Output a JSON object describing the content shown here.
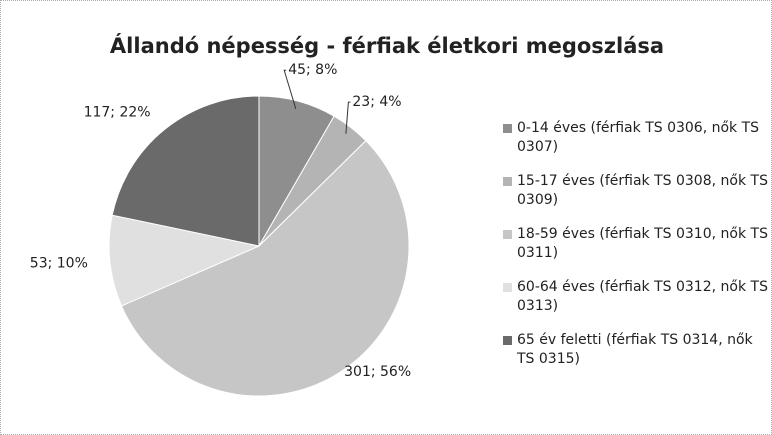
{
  "chart_data": {
    "type": "pie",
    "title": "Állandó népesség - férfiak életkori megoszlása",
    "categories": [
      "0-14 éves (férfiak TS 0306, nők TS 0307)",
      "15-17 éves (férfiak TS 0308, nők TS 0309)",
      "18-59 éves (férfiak TS 0310, nők TS 0311)",
      "60-64 éves (férfiak TS 0312, nők TS 0313)",
      "65 év feletti (férfiak TS 0314, nők TS 0315)"
    ],
    "values": [
      45,
      23,
      301,
      53,
      117
    ],
    "value_labels": [
      "45; 8%",
      "23; 4%",
      "301; 56%",
      "53; 10%",
      "117; 22%"
    ],
    "colors": [
      "#8e8e8e",
      "#b4b4b4",
      "#c6c6c6",
      "#e0e0e0",
      "#6a6a6a"
    ],
    "legend": "right"
  }
}
